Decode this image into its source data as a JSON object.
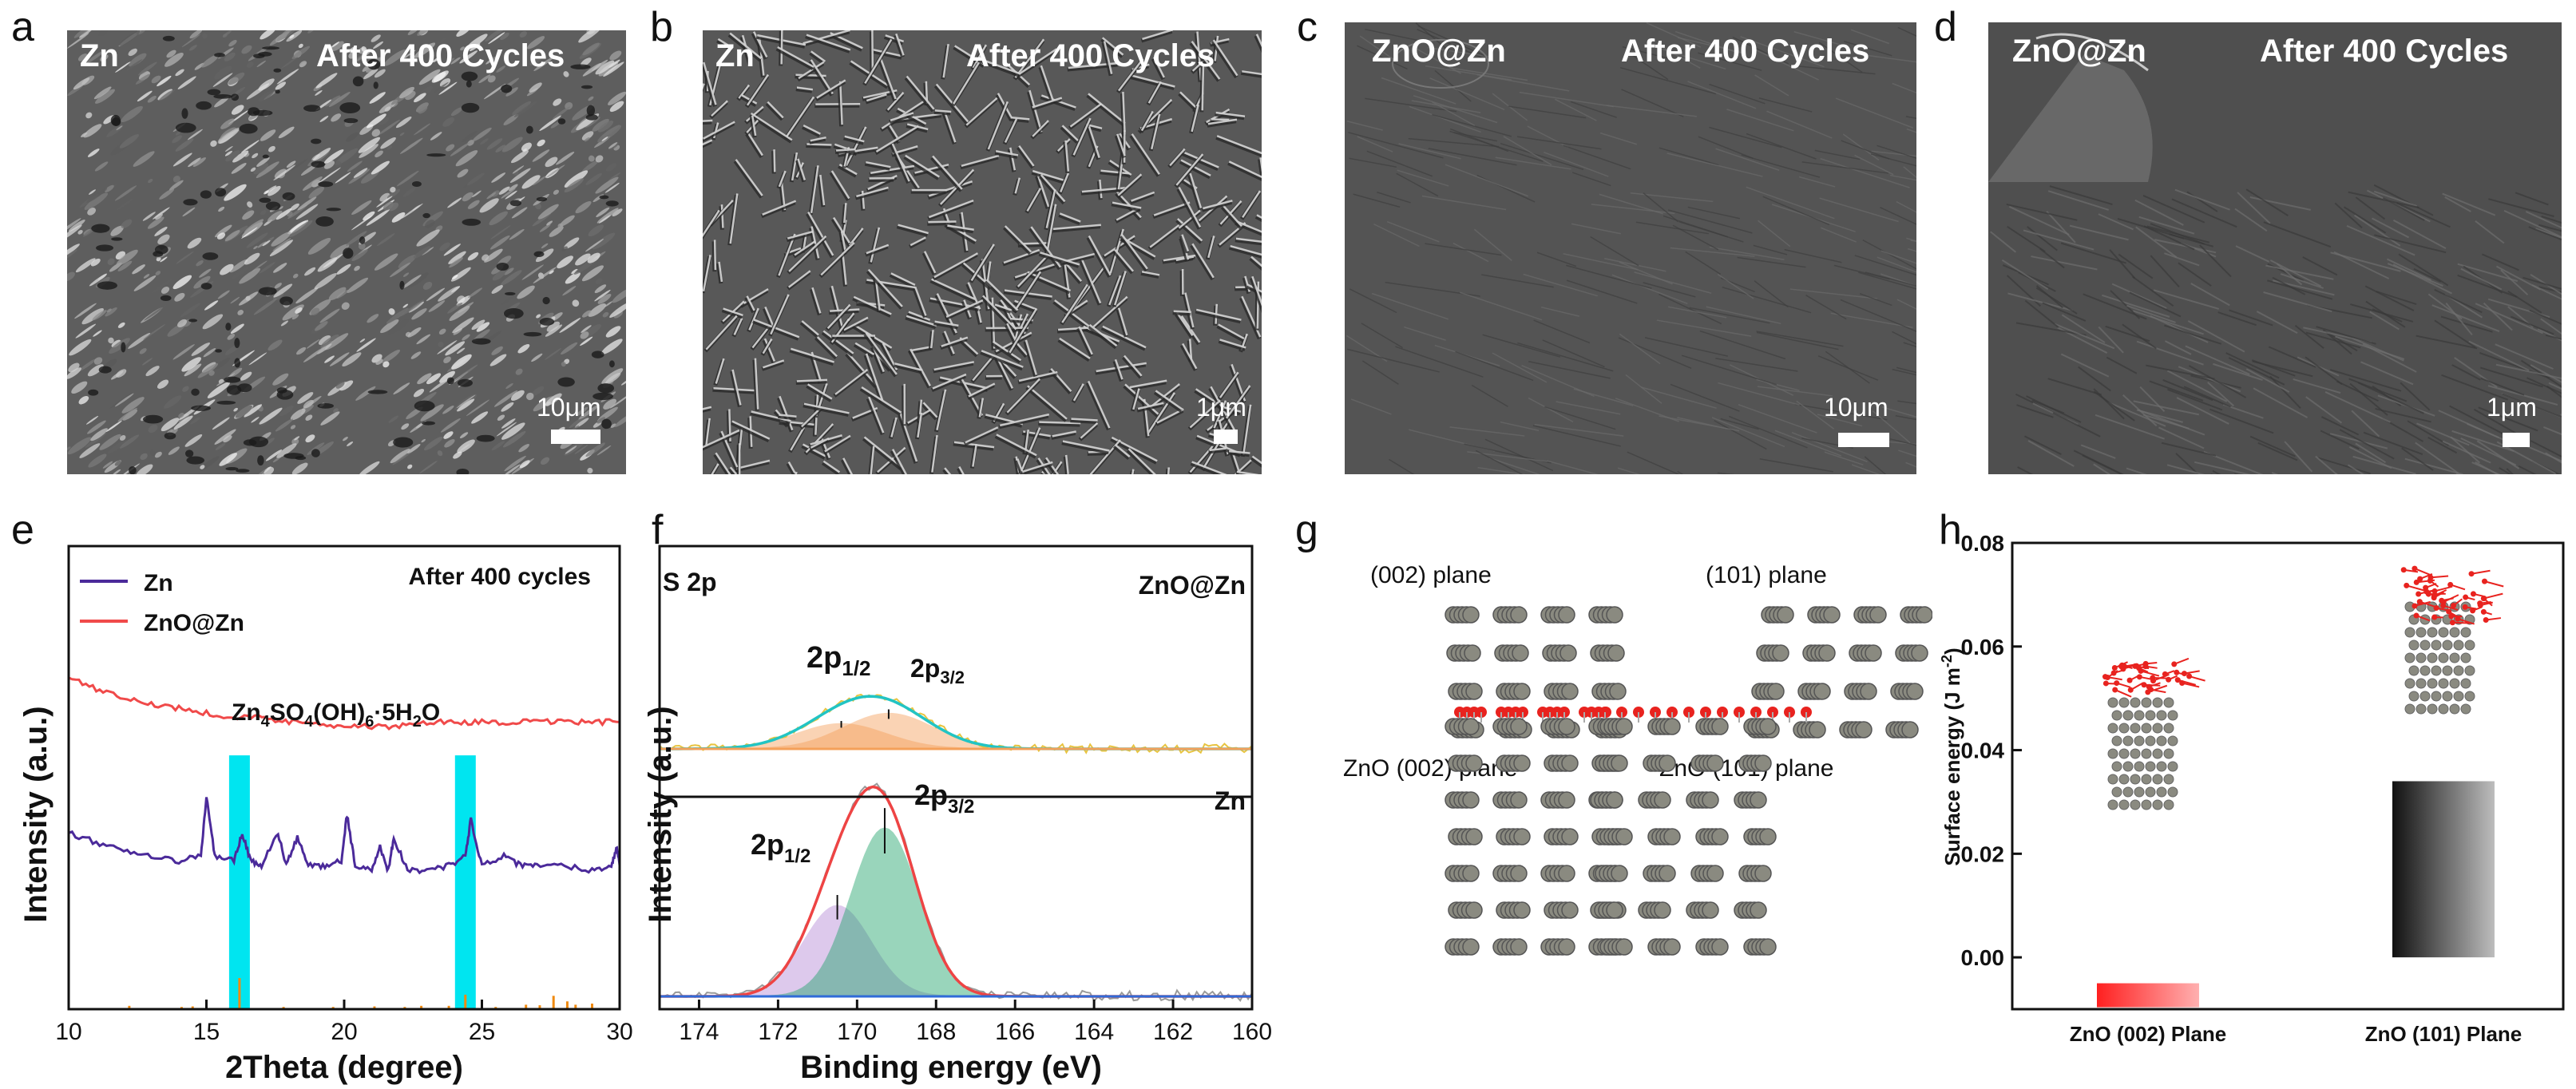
{
  "panels": {
    "a": {
      "letter": "a",
      "sample": "Zn",
      "caption": "After 400 Cycles",
      "scale": "10μm"
    },
    "b": {
      "letter": "b",
      "sample": "Zn",
      "caption": "After 400 Cycles",
      "scale": "1μm"
    },
    "c": {
      "letter": "c",
      "sample": "ZnO@Zn",
      "caption": "After 400 Cycles",
      "scale": "10μm"
    },
    "d": {
      "letter": "d",
      "sample": "ZnO@Zn",
      "caption": "After 400 Cycles",
      "scale": "1μm"
    },
    "e": {
      "letter": "e"
    },
    "f": {
      "letter": "f"
    },
    "g": {
      "letter": "g"
    },
    "h": {
      "letter": "h"
    }
  },
  "structures": {
    "top_left": "(002) plane",
    "top_right": "(101) plane",
    "bottom_left": "ZnO (002) plane",
    "bottom_right": "ZnO (101) plane"
  },
  "colors": {
    "zn_purple": "#4b2a9a",
    "zno_red": "#f04a4a",
    "cyan_band": "#00e5f0",
    "ref_orange": "#f08a10",
    "green_fit": "#1fa36a",
    "violet_fit": "#b58ad6",
    "orange_fit": "#f4a05a",
    "teal_fit": "#22c4c4",
    "baseline_blue": "#2f6bd8",
    "o_atom": "#e8231f",
    "zn_atom": "#8a8a80"
  },
  "chart_data": [
    {
      "type": "line",
      "panel": "e",
      "xlabel": "2Theta (degree)",
      "ylabel": "Intensity (a.u.)",
      "xlim": [
        10,
        30
      ],
      "xticks": [
        10,
        15,
        20,
        25,
        30
      ],
      "annotation": "After 400 cycles",
      "phase_label": "Zn4SO4(OH)6·5H2O",
      "phase_label_parts": {
        "p1": "Zn",
        "s1": "4",
        "p2": "SO",
        "s2": "4",
        "p3": "(OH)",
        "s3": "6",
        "p4": "·5H",
        "s4": "2",
        "p5": "O"
      },
      "highlight_bands": [
        16.2,
        24.4
      ],
      "legend_position": "top-left",
      "series": [
        {
          "name": "Zn",
          "color": "#4b2a9a",
          "x": [
            10,
            11,
            12,
            13,
            14,
            14.8,
            15,
            15.3,
            16,
            16.3,
            16.6,
            17,
            17.6,
            17.9,
            18.3,
            18.7,
            19.3,
            19.9,
            20.1,
            20.4,
            21,
            21.3,
            21.6,
            21.8,
            22.3,
            23,
            23.8,
            24.4,
            24.6,
            25,
            25.8,
            26.4,
            27,
            28,
            29,
            29.7,
            29.9,
            30
          ],
          "y": [
            0.38,
            0.36,
            0.34,
            0.33,
            0.32,
            0.33,
            0.46,
            0.33,
            0.32,
            0.38,
            0.32,
            0.31,
            0.38,
            0.31,
            0.37,
            0.31,
            0.31,
            0.32,
            0.42,
            0.31,
            0.3,
            0.35,
            0.3,
            0.37,
            0.3,
            0.3,
            0.31,
            0.33,
            0.41,
            0.31,
            0.33,
            0.31,
            0.31,
            0.31,
            0.3,
            0.31,
            0.35,
            0.31
          ]
        },
        {
          "name": "ZnO@Zn",
          "color": "#f04a4a",
          "x": [
            10,
            11,
            12,
            13,
            14,
            15,
            16,
            17,
            18,
            19,
            20,
            21,
            22,
            23,
            24,
            25,
            26,
            27,
            28,
            29,
            30
          ],
          "y": [
            0.72,
            0.69,
            0.67,
            0.66,
            0.65,
            0.64,
            0.63,
            0.63,
            0.62,
            0.62,
            0.61,
            0.61,
            0.61,
            0.62,
            0.62,
            0.62,
            0.62,
            0.62,
            0.62,
            0.62,
            0.62
          ]
        }
      ],
      "reference_sticks": {
        "name": "Zn4SO4(OH)6·5H2O",
        "x": [
          12.2,
          14.1,
          14.5,
          16.2,
          17.8,
          19.6,
          21.1,
          22.2,
          22.8,
          23.8,
          24.4,
          25.5,
          26.6,
          27.1,
          27.6,
          28.1,
          28.4,
          29.0
        ],
        "h": [
          0.03,
          0.02,
          0.025,
          0.28,
          0.02,
          0.02,
          0.025,
          0.02,
          0.03,
          0.03,
          0.13,
          0.02,
          0.04,
          0.035,
          0.12,
          0.07,
          0.04,
          0.05
        ]
      }
    },
    {
      "type": "line",
      "panel": "f",
      "xlabel": "Binding energy (eV)",
      "ylabel": "Intensity (a.u.)",
      "xlim": [
        175,
        160
      ],
      "xticks": [
        174,
        172,
        170,
        168,
        166,
        164,
        162,
        160
      ],
      "title": "S 2p",
      "subplots": [
        {
          "label": "ZnO@Zn",
          "peak_labels": {
            "p12": "2p",
            "p12sub": "1/2",
            "p32": "2p",
            "p32sub": "3/2"
          },
          "fits": [
            {
              "name": "2p1/2",
              "center": 170.4,
              "height": 0.12,
              "width": 1.6,
              "color": "#f4a05a"
            },
            {
              "name": "2p3/2",
              "center": 169.2,
              "height": 0.17,
              "width": 1.6,
              "color": "#f4a05a"
            }
          ]
        },
        {
          "label": "Zn",
          "peak_labels": {
            "p12": "2p",
            "p12sub": "1/2",
            "p32": "2p",
            "p32sub": "3/2"
          },
          "fits": [
            {
              "name": "2p1/2",
              "center": 170.5,
              "height": 0.42,
              "width": 1.2,
              "color": "#b58ad6"
            },
            {
              "name": "2p3/2",
              "center": 169.3,
              "height": 0.78,
              "width": 1.2,
              "color": "#1fa36a"
            }
          ]
        }
      ]
    },
    {
      "type": "bar",
      "panel": "h",
      "ylabel": "Surface energy (J m-2)",
      "ylabel_parts": {
        "main": "Surface energy (J m",
        "sup": "-2",
        "end": ")"
      },
      "ylim": [
        -0.01,
        0.08
      ],
      "yticks": [
        0.0,
        0.02,
        0.04,
        0.06,
        0.08
      ],
      "ytick_labels": [
        "0.00",
        "0.02",
        "0.04",
        "0.06",
        "0.08"
      ],
      "categories": [
        "ZnO (002) Plane",
        "ZnO (101) Plane"
      ],
      "values": [
        -0.005,
        0.034
      ]
    }
  ]
}
